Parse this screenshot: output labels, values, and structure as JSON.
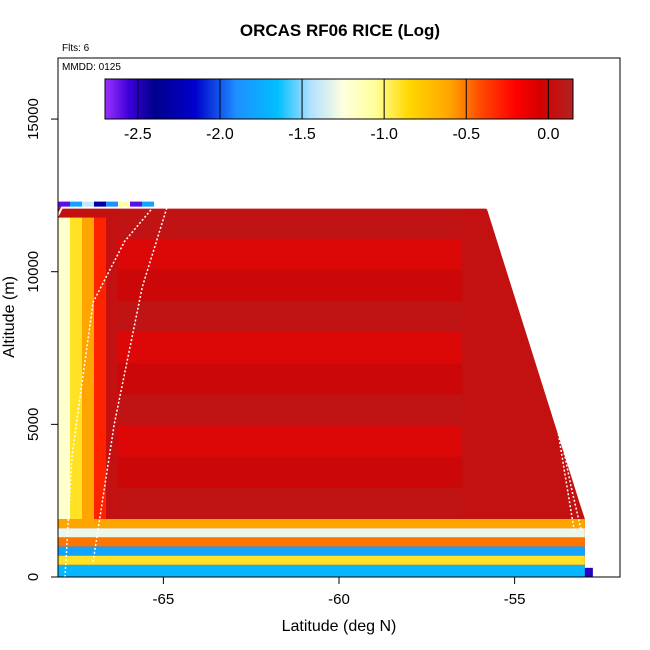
{
  "chart_data": {
    "type": "heatmap",
    "title": "ORCAS RF06 RICE (Log)",
    "xlabel": "Latitude (deg N)",
    "ylabel": "Altitude (m)",
    "xlim": [
      -68.0,
      -52.0
    ],
    "ylim": [
      0,
      17000
    ],
    "x_ticks": [
      -65,
      -60,
      -55
    ],
    "x_tick_labels": [
      "-65",
      "-60",
      "-55"
    ],
    "y_ticks": [
      0,
      5000,
      10000,
      15000
    ],
    "y_tick_labels": [
      "0",
      "5000",
      "10000",
      "15000"
    ],
    "flights_label": "Flts: 6",
    "date_label": "MMDD: 0125",
    "colorbar": {
      "range": [
        -2.7,
        0.15
      ],
      "ticks": [
        -2.5,
        -2.0,
        -1.5,
        -1.0,
        -0.5,
        0.0
      ],
      "tick_labels": [
        "-2.5",
        "-2.0",
        "-1.5",
        "-1.0",
        "-0.5",
        "0.0"
      ],
      "stops": [
        {
          "v": -2.7,
          "c": "#9b30ff"
        },
        {
          "v": -2.55,
          "c": "#3a00d8"
        },
        {
          "v": -2.4,
          "c": "#00008b"
        },
        {
          "v": -2.15,
          "c": "#0000cd"
        },
        {
          "v": -1.9,
          "c": "#1e90ff"
        },
        {
          "v": -1.65,
          "c": "#00bfff"
        },
        {
          "v": -1.45,
          "c": "#b0e0ff"
        },
        {
          "v": -1.25,
          "c": "#ffffe0"
        },
        {
          "v": -1.05,
          "c": "#ffff99"
        },
        {
          "v": -0.85,
          "c": "#ffd700"
        },
        {
          "v": -0.6,
          "c": "#ffa500"
        },
        {
          "v": -0.4,
          "c": "#ff4500"
        },
        {
          "v": -0.2,
          "c": "#ff0000"
        },
        {
          "v": -0.05,
          "c": "#d40000"
        },
        {
          "v": 0.15,
          "c": "#b22222"
        }
      ]
    },
    "data_region": {
      "lat_min": -68.0,
      "lat_top_end": -55.8,
      "lat_max": -53.0,
      "ceiling_alt": 12100,
      "tiers": [
        {
          "alt_low": 0,
          "alt_high": 400,
          "value": -1.7
        },
        {
          "alt_low": 400,
          "alt_high": 700,
          "value": -0.9
        },
        {
          "alt_low": 700,
          "alt_high": 1000,
          "value": -1.8
        },
        {
          "alt_low": 1000,
          "alt_high": 1300,
          "value": -0.5
        },
        {
          "alt_low": 1300,
          "alt_high": 1600,
          "value": -1.3
        },
        {
          "alt_low": 1600,
          "alt_high": 1900,
          "value": -0.6
        }
      ],
      "interior_value": 0.05,
      "edge_values": [
        -1.2,
        -0.9,
        -0.6,
        -0.3
      ]
    },
    "flight_tracks": [
      {
        "points": [
          [
            -67.8,
            0
          ],
          [
            -67.6,
            4000
          ],
          [
            -67.0,
            9000
          ],
          [
            -66.1,
            11000
          ],
          [
            -65.3,
            12100
          ]
        ]
      },
      {
        "points": [
          [
            -67.0,
            500
          ],
          [
            -66.4,
            5000
          ],
          [
            -65.6,
            9500
          ],
          [
            -64.9,
            12100
          ]
        ]
      },
      {
        "points": [
          [
            -55.8,
            12100
          ],
          [
            -54.9,
            10500
          ],
          [
            -54.1,
            7000
          ],
          [
            -53.4,
            3000
          ],
          [
            -53.1,
            1500
          ]
        ]
      },
      {
        "points": [
          [
            -55.5,
            12100
          ],
          [
            -54.4,
            9000
          ],
          [
            -53.8,
            5000
          ],
          [
            -53.3,
            1500
          ]
        ]
      }
    ]
  }
}
